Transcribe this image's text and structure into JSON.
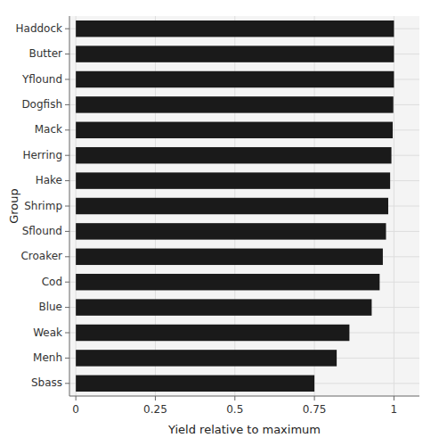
{
  "chart_data": {
    "type": "bar",
    "orientation": "horizontal",
    "categories": [
      "Sbass",
      "Menh",
      "Weak",
      "Blue",
      "Cod",
      "Croaker",
      "Sflound",
      "Shrimp",
      "Hake",
      "Herring",
      "Mack",
      "Dogfish",
      "Yflound",
      "Butter",
      "Haddock"
    ],
    "values": [
      0.75,
      0.82,
      0.86,
      0.93,
      0.955,
      0.965,
      0.975,
      0.982,
      0.988,
      0.992,
      0.996,
      0.998,
      1.0,
      1.0,
      1.0
    ],
    "color": "#1a1a1a",
    "xlabel": "Yield relative to maximum",
    "ylabel": "Group",
    "xlim": [
      -0.02,
      1.08
    ],
    "xticks": [
      0,
      0.25,
      0.5,
      0.75,
      1
    ],
    "grid": true
  }
}
